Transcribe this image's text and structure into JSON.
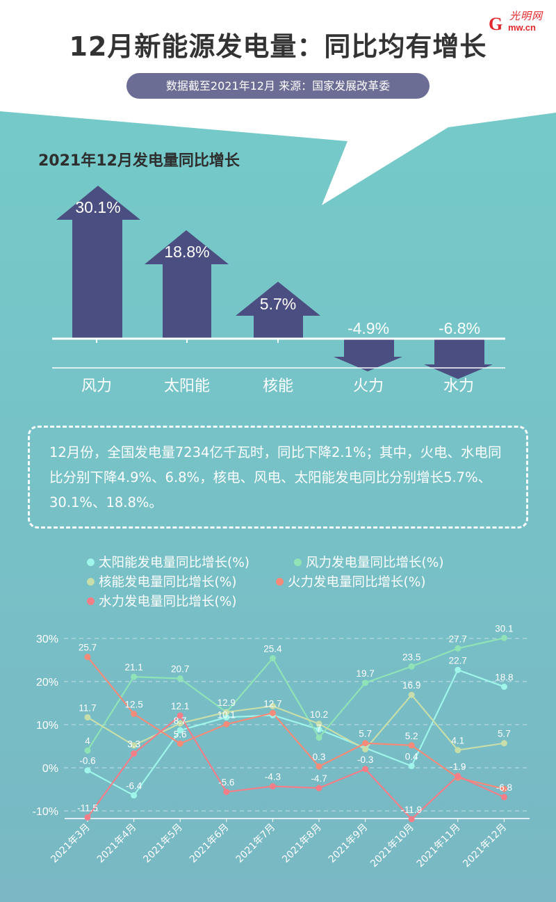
{
  "header": {
    "title": "12月新能源发电量：同比均有增长",
    "source": "数据截至2021年12月   来源：国家发展改革委",
    "logo": {
      "letter": "G",
      "name": "光明网",
      "url": "mw.cn"
    }
  },
  "bar_section": {
    "title": "2021年12月发电量同比增长"
  },
  "summary": {
    "text": "12月份，全国发电量7234亿千瓦时，同比下降2.1%；其中，火电、水电同比分别下降4.9%、6.8%，核电、风电、太阳能发电同比分别增长5.7%、30.1%、18.8%。"
  },
  "legend": [
    {
      "label": "太阳能发电量同比增长(%)",
      "color": "#9ff5ea"
    },
    {
      "label": "风力发电量同比增长(%)",
      "color": "#8fe3b6"
    },
    {
      "label": "核能发电量同比增长(%)",
      "color": "#c7deaa"
    },
    {
      "label": "火力发电量同比增长(%)",
      "color": "#f58a78"
    },
    {
      "label": "水力发电量同比增长(%)",
      "color": "#f47e88"
    }
  ],
  "colors": {
    "arrow": "#4b4e80",
    "pill": "#6c6d94",
    "bg_top": "#75cac9",
    "bg_bottom": "#79b8c4",
    "title": "#333333"
  },
  "chart_data": [
    {
      "type": "bar",
      "title": "2021年12月发电量同比增长",
      "categories": [
        "风力",
        "太阳能",
        "核能",
        "火力",
        "水力"
      ],
      "values": [
        30.1,
        18.8,
        5.7,
        -4.9,
        -6.8
      ],
      "value_labels": [
        "30.1%",
        "18.8%",
        "5.7%",
        "-4.9%",
        "-6.8%"
      ],
      "xlabel": "",
      "ylabel": "",
      "style": "arrows"
    },
    {
      "type": "line",
      "title": "",
      "categories": [
        "2021年3月",
        "2021年4月",
        "2021年5月",
        "2021年6月",
        "2021年7月",
        "2021年8月",
        "2021年9月",
        "2021年10月",
        "2021年11月",
        "2021年12月"
      ],
      "yticks": [
        "30%",
        "20%",
        "10%",
        "0%",
        "-10%"
      ],
      "ytick_values": [
        30,
        20,
        10,
        0,
        -10
      ],
      "ylim": [
        -11.9,
        30.1
      ],
      "grid": true,
      "legend_position": "top",
      "series": [
        {
          "name": "太阳能发电量同比增长(%)",
          "color": "#9ff5ea",
          "values": [
            -0.6,
            -6.4,
            8.7,
            11.7,
            12.2,
            8.9,
            4.6,
            0.4,
            22.7,
            18.8
          ],
          "labels": [
            "-0.6",
            "-6.4",
            "8.7",
            null,
            null,
            null,
            null,
            "0.4",
            "22.7",
            "18.8"
          ]
        },
        {
          "name": "风力发电量同比增长(%)",
          "color": "#8fe3b6",
          "values": [
            4,
            21.1,
            20.7,
            12.9,
            25.4,
            7,
            19.7,
            23.5,
            27.7,
            30.1
          ],
          "labels": [
            "4",
            "21.1",
            "20.7",
            "12.9",
            "25.4",
            "7",
            "19.7",
            "23.5",
            "27.7",
            "30.1"
          ]
        },
        {
          "name": "核能发电量同比增长(%)",
          "color": "#c7deaa",
          "values": [
            11.7,
            5.2,
            10.3,
            12.9,
            14.3,
            10.2,
            4.3,
            16.9,
            4.1,
            5.7
          ],
          "labels": [
            "11.7",
            null,
            null,
            null,
            null,
            "10.2",
            null,
            "16.9",
            "4.1",
            "5.7"
          ]
        },
        {
          "name": "火力发电量同比增长(%)",
          "color": "#f58a78",
          "values": [
            25.7,
            12.5,
            5.6,
            10.1,
            12.7,
            0.3,
            5.7,
            5.2,
            -2.3,
            -4.9
          ],
          "labels": [
            "25.7",
            "12.5",
            "5.6",
            "10.1",
            "12.7",
            "0.3",
            "5.7",
            "5.2",
            null,
            null
          ]
        },
        {
          "name": "水力发电量同比增长(%)",
          "color": "#f47e88",
          "values": [
            -11.5,
            3.3,
            12.1,
            -5.6,
            -4.3,
            -4.7,
            -0.3,
            -11.9,
            -1.9,
            -6.8
          ],
          "labels": [
            "-11.5",
            "3.3",
            "12.1",
            "-5.6",
            "-4.3",
            "-4.7",
            "-0.3",
            "-11.9",
            "-1.9",
            "-6.8"
          ]
        }
      ]
    }
  ]
}
